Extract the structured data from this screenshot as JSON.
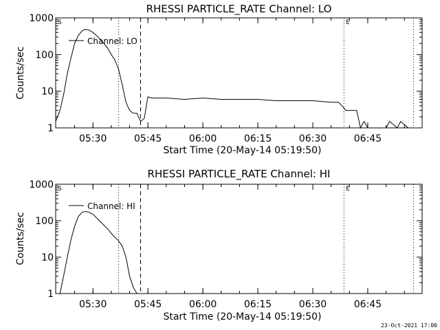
{
  "footer": {
    "timestamp": "23-Oct-2021 17:00"
  },
  "chart_data": [
    {
      "type": "line",
      "title": "RHESSI PARTICLE_RATE Channel: LO",
      "xlabel": "Start Time (20-May-14 05:19:50)",
      "ylabel": "Counts/sec",
      "yscale": "log",
      "ylim": [
        1,
        1000
      ],
      "xlim_minutes_after_start": [
        0,
        100
      ],
      "xticks": [
        "05:30",
        "05:45",
        "06:00",
        "06:15",
        "06:30",
        "06:45"
      ],
      "yticks": [
        "1",
        "10",
        "100",
        "1000"
      ],
      "legend": "Channel: LO",
      "markers": [
        {
          "label": "S",
          "time": "05:19:50",
          "style": "dotted"
        },
        {
          "label": "",
          "time": "05:37:00",
          "style": "dotted"
        },
        {
          "label": "",
          "time": "05:43:00",
          "style": "dashed"
        },
        {
          "label": "E",
          "time": "06:38:30",
          "style": "dotted"
        },
        {
          "label": "",
          "time": "06:57:30",
          "style": "dotted"
        }
      ],
      "series": [
        {
          "name": "Channel: LO",
          "x": [
            "05:19:50",
            "05:21",
            "05:22",
            "05:23",
            "05:24",
            "05:25",
            "05:26",
            "05:27",
            "05:28",
            "05:29",
            "05:30",
            "05:31",
            "05:32",
            "05:33",
            "05:34",
            "05:35",
            "05:36",
            "05:37",
            "05:38",
            "05:39",
            "05:40",
            "05:41",
            "05:42",
            "05:43",
            "05:44",
            "05:45",
            "05:46",
            "05:50",
            "05:55",
            "06:00",
            "06:05",
            "06:10",
            "06:15",
            "06:20",
            "06:25",
            "06:30",
            "06:35",
            "06:37",
            "06:38",
            "06:39",
            "06:41",
            "06:42",
            "06:43",
            "06:44",
            "06:45",
            "06:46",
            "06:50",
            "06:51",
            "06:53",
            "06:54",
            "06:56"
          ],
          "y": [
            1.5,
            3,
            8,
            30,
            80,
            200,
            330,
            440,
            490,
            460,
            400,
            330,
            260,
            200,
            150,
            100,
            70,
            40,
            15,
            5,
            3,
            2.5,
            2.5,
            1.5,
            1.8,
            7,
            6.5,
            6.5,
            6,
            6.5,
            6,
            6,
            6,
            5.5,
            5.5,
            5.5,
            5,
            5,
            4,
            3,
            3,
            3,
            1,
            1.5,
            1,
            1,
            1,
            1.5,
            1,
            1.5,
            1
          ]
        }
      ]
    },
    {
      "type": "line",
      "title": "RHESSI PARTICLE_RATE Channel: HI",
      "xlabel": "Start Time (20-May-14 05:19:50)",
      "ylabel": "Counts/sec",
      "yscale": "log",
      "ylim": [
        1,
        1000
      ],
      "xlim_minutes_after_start": [
        0,
        100
      ],
      "xticks": [
        "05:30",
        "05:45",
        "06:00",
        "06:15",
        "06:30",
        "06:45"
      ],
      "yticks": [
        "1",
        "10",
        "100",
        "1000"
      ],
      "legend": "Channel: HI",
      "markers": [
        {
          "label": "S",
          "time": "05:19:50",
          "style": "dotted"
        },
        {
          "label": "",
          "time": "05:37:00",
          "style": "dotted"
        },
        {
          "label": "",
          "time": "05:43:00",
          "style": "dashed"
        },
        {
          "label": "E",
          "time": "06:38:30",
          "style": "dotted"
        },
        {
          "label": "",
          "time": "06:57:30",
          "style": "dotted"
        }
      ],
      "series": [
        {
          "name": "Channel: HI",
          "x": [
            "05:21",
            "05:22",
            "05:23",
            "05:24",
            "05:25",
            "05:26",
            "05:27",
            "05:28",
            "05:29",
            "05:30",
            "05:31",
            "05:32",
            "05:33",
            "05:34",
            "05:35",
            "05:36",
            "05:37",
            "05:38",
            "05:39",
            "05:40",
            "05:41",
            "05:42"
          ],
          "y": [
            1,
            3,
            10,
            30,
            70,
            130,
            170,
            180,
            170,
            150,
            120,
            95,
            75,
            60,
            45,
            35,
            28,
            20,
            10,
            3,
            1.5,
            1
          ]
        }
      ]
    }
  ]
}
